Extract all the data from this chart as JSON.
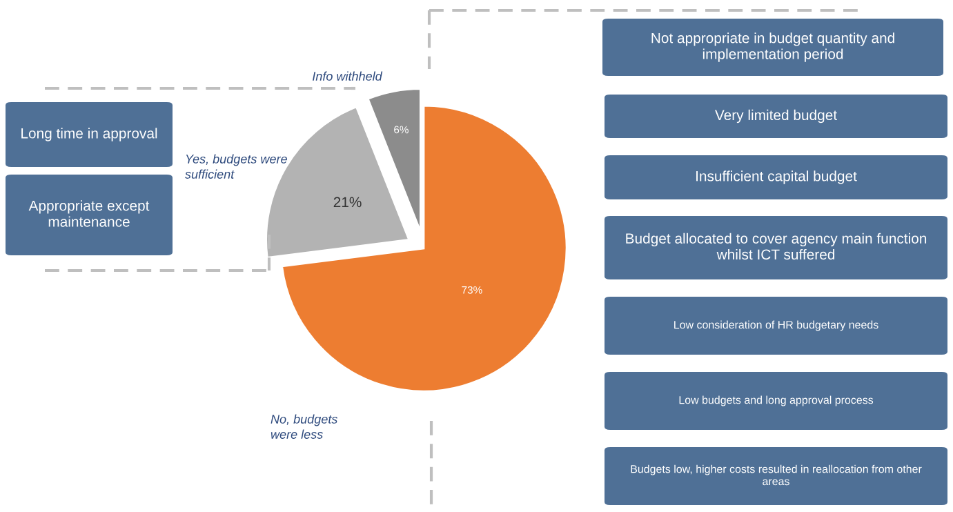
{
  "chart_data": {
    "type": "pie",
    "categories": [
      "No, budgets were less",
      "Yes, budgets were sufficient",
      "Info withheld"
    ],
    "values": [
      73,
      21,
      6
    ],
    "colors": [
      "#ed7d31",
      "#b3b3b3",
      "#8c8c8c"
    ],
    "value_labels": [
      "73%",
      "21%",
      "6%"
    ],
    "legend": false,
    "annotations": [
      "Long time in approval",
      "Appropriate except maintenance",
      "Not appropriate in budget quantity and implementation period",
      "Very limited budget",
      "Insufficient capital budget",
      "Budget allocated to cover agency main function whilst ICT suffered",
      "Low consideration of HR budgetary needs",
      "Low budgets and long approval process",
      "Budgets low, higher costs resulted in reallocation from other areas"
    ]
  }
}
